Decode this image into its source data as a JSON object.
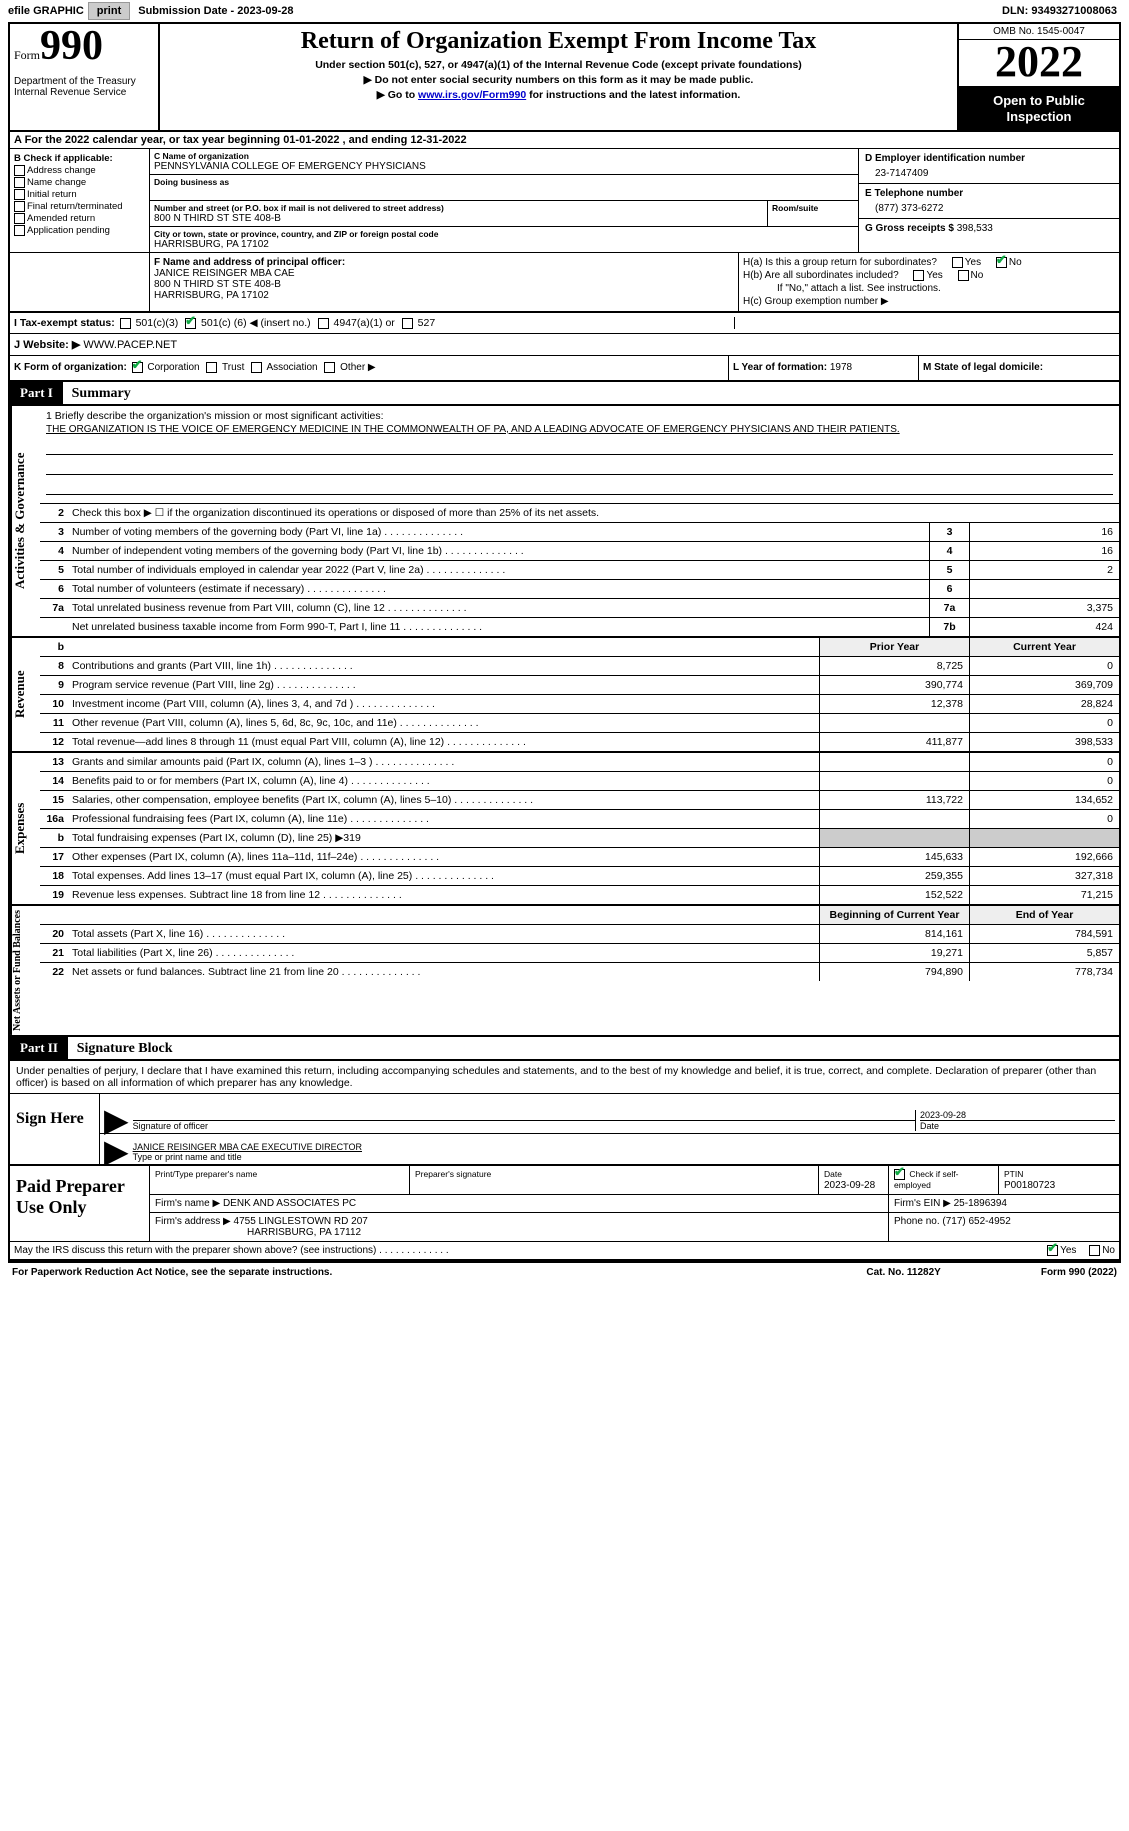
{
  "topbar": {
    "efile_label": "efile GRAPHIC",
    "print_btn": "print",
    "sub_date_label": "Submission Date - 2023-09-28",
    "dln_label": "DLN: 93493271008063"
  },
  "header": {
    "form_prefix": "Form",
    "form_number": "990",
    "title": "Return of Organization Exempt From Income Tax",
    "subtitle1": "Under section 501(c), 527, or 4947(a)(1) of the Internal Revenue Code (except private foundations)",
    "subtitle2": "▶ Do not enter social security numbers on this form as it may be made public.",
    "subtitle3_pre": "▶ Go to ",
    "subtitle3_link": "www.irs.gov/Form990",
    "subtitle3_post": " for instructions and the latest information.",
    "dept1": "Department of the Treasury",
    "dept2": "Internal Revenue Service",
    "omb": "OMB No. 1545-0047",
    "year": "2022",
    "inspection": "Open to Public Inspection"
  },
  "rowA": "A For the 2022 calendar year, or tax year beginning 01-01-2022    , and ending 12-31-2022",
  "boxB": {
    "label": "B Check if applicable:",
    "items": [
      "Address change",
      "Name change",
      "Initial return",
      "Final return/terminated",
      "Amended return",
      "Application pending"
    ]
  },
  "boxC": {
    "name_label": "C Name of organization",
    "name": "PENNSYLVANIA COLLEGE OF EMERGENCY PHYSICIANS",
    "dba_label": "Doing business as",
    "street_label": "Number and street (or P.O. box if mail is not delivered to street address)",
    "street": "800 N THIRD ST STE 408-B",
    "room_label": "Room/suite",
    "city_label": "City or town, state or province, country, and ZIP or foreign postal code",
    "city": "HARRISBURG, PA   17102"
  },
  "boxD": {
    "label": "D Employer identification number",
    "value": "23-7147409"
  },
  "boxE": {
    "label": "E Telephone number",
    "value": "(877) 373-6272"
  },
  "boxG": {
    "label": "G Gross receipts $ ",
    "value": "398,533"
  },
  "boxF": {
    "label": "F  Name and address of principal officer:",
    "name": "JANICE REISINGER MBA CAE",
    "addr1": "800 N THIRD ST STE 408-B",
    "addr2": "HARRISBURG, PA   17102"
  },
  "boxH": {
    "ha": "H(a)  Is this a group return for subordinates?",
    "hb": "H(b)  Are all subordinates included?",
    "hb_note": "If \"No,\" attach a list. See instructions.",
    "hc": "H(c)  Group exemption number ▶"
  },
  "rowI": {
    "label": "I   Tax-exempt status:",
    "opt1": "501(c)(3)",
    "opt2_pre": "501(c) (",
    "opt2_num": "6",
    "opt2_post": ") ◀ (insert no.)",
    "opt3": "4947(a)(1) or",
    "opt4": "527"
  },
  "rowJ": {
    "label": "J   Website: ▶",
    "value": "  WWW.PACEP.NET"
  },
  "rowK": {
    "label": "K Form of organization:",
    "opts": [
      "Corporation",
      "Trust",
      "Association",
      "Other ▶"
    ]
  },
  "rowL": {
    "label": "L Year of formation: ",
    "value": "1978"
  },
  "rowM": {
    "label": "M State of legal domicile:"
  },
  "part1": {
    "header": "Part I",
    "title": "Summary"
  },
  "summary": {
    "tabs": {
      "ag": "Activities & Governance",
      "rev": "Revenue",
      "exp": "Expenses",
      "na": "Net Assets or Fund Balances"
    },
    "mission_label": "1    Briefly describe the organization's mission or most significant activities:",
    "mission": "THE ORGANIZATION IS THE VOICE OF EMERGENCY MEDICINE IN THE COMMONWEALTH OF PA, AND A LEADING ADVOCATE OF EMERGENCY PHYSICIANS AND THEIR PATIENTS.",
    "line2": "Check this box ▶ ☐  if the organization discontinued its operations or disposed of more than 25% of its net assets.",
    "lines_ag": [
      {
        "n": "3",
        "d": "Number of voting members of the governing body (Part VI, line 1a)",
        "bn": "3",
        "v": "16"
      },
      {
        "n": "4",
        "d": "Number of independent voting members of the governing body (Part VI, line 1b)",
        "bn": "4",
        "v": "16"
      },
      {
        "n": "5",
        "d": "Total number of individuals employed in calendar year 2022 (Part V, line 2a)",
        "bn": "5",
        "v": "2"
      },
      {
        "n": "6",
        "d": "Total number of volunteers (estimate if necessary)",
        "bn": "6",
        "v": ""
      },
      {
        "n": "7a",
        "d": "Total unrelated business revenue from Part VIII, column (C), line 12",
        "bn": "7a",
        "v": "3,375"
      },
      {
        "n": "",
        "d": "Net unrelated business taxable income from Form 990-T, Part I, line 11",
        "bn": "7b",
        "v": "424"
      }
    ],
    "hdr_b": "b",
    "hdr_prior": "Prior Year",
    "hdr_current": "Current Year",
    "lines_rev": [
      {
        "n": "8",
        "d": "Contributions and grants (Part VIII, line 1h)",
        "p": "8,725",
        "c": "0"
      },
      {
        "n": "9",
        "d": "Program service revenue (Part VIII, line 2g)",
        "p": "390,774",
        "c": "369,709"
      },
      {
        "n": "10",
        "d": "Investment income (Part VIII, column (A), lines 3, 4, and 7d )",
        "p": "12,378",
        "c": "28,824"
      },
      {
        "n": "11",
        "d": "Other revenue (Part VIII, column (A), lines 5, 6d, 8c, 9c, 10c, and 11e)",
        "p": "",
        "c": "0"
      },
      {
        "n": "12",
        "d": "Total revenue—add lines 8 through 11 (must equal Part VIII, column (A), line 12)",
        "p": "411,877",
        "c": "398,533"
      }
    ],
    "lines_exp": [
      {
        "n": "13",
        "d": "Grants and similar amounts paid (Part IX, column (A), lines 1–3 )",
        "p": "",
        "c": "0"
      },
      {
        "n": "14",
        "d": "Benefits paid to or for members (Part IX, column (A), line 4)",
        "p": "",
        "c": "0"
      },
      {
        "n": "15",
        "d": "Salaries, other compensation, employee benefits (Part IX, column (A), lines 5–10)",
        "p": "113,722",
        "c": "134,652"
      },
      {
        "n": "16a",
        "d": "Professional fundraising fees (Part IX, column (A), line 11e)",
        "p": "",
        "c": "0"
      },
      {
        "n": "b",
        "d": "Total fundraising expenses (Part IX, column (D), line 25) ▶319",
        "p": "grey",
        "c": "grey",
        "nobox": true
      },
      {
        "n": "17",
        "d": "Other expenses (Part IX, column (A), lines 11a–11d, 11f–24e)",
        "p": "145,633",
        "c": "192,666"
      },
      {
        "n": "18",
        "d": "Total expenses. Add lines 13–17 (must equal Part IX, column (A), line 25)",
        "p": "259,355",
        "c": "327,318"
      },
      {
        "n": "19",
        "d": "Revenue less expenses. Subtract line 18 from line 12",
        "p": "152,522",
        "c": "71,215"
      }
    ],
    "hdr_begin": "Beginning of Current Year",
    "hdr_end": "End of Year",
    "lines_na": [
      {
        "n": "20",
        "d": "Total assets (Part X, line 16)",
        "p": "814,161",
        "c": "784,591"
      },
      {
        "n": "21",
        "d": "Total liabilities (Part X, line 26)",
        "p": "19,271",
        "c": "5,857"
      },
      {
        "n": "22",
        "d": "Net assets or fund balances. Subtract line 21 from line 20",
        "p": "794,890",
        "c": "778,734"
      }
    ]
  },
  "part2": {
    "header": "Part II",
    "title": "Signature Block"
  },
  "sig_text": "Under penalties of perjury, I declare that I have examined this return, including accompanying schedules and statements, and to the best of my knowledge and belief, it is true, correct, and complete. Declaration of preparer (other than officer) is based on all information of which preparer has any knowledge.",
  "sign": {
    "left": "Sign Here",
    "sig_of_officer": "Signature of officer",
    "sig_date": "2023-09-28",
    "date_label": "Date",
    "typed_name": "JANICE REISINGER MBA CAE  EXECUTIVE DIRECTOR",
    "typed_label": "Type or print name and title"
  },
  "preparer": {
    "left": "Paid Preparer Use Only",
    "name_label": "Print/Type preparer's name",
    "sig_label": "Preparer's signature",
    "date_label": "Date",
    "date_value": "2023-09-28",
    "check_label": "Check ☑ if self-employed",
    "ptin_label": "PTIN",
    "ptin_value": "P00180723",
    "firm_name_label": "Firm's name      ▶",
    "firm_name": "DENK AND ASSOCIATES PC",
    "firm_ein_label": "Firm's EIN ▶",
    "firm_ein": "25-1896394",
    "firm_addr_label": "Firm's address ▶",
    "firm_addr1": "4755 LINGLESTOWN RD 207",
    "firm_addr2": "HARRISBURG, PA   17112",
    "phone_label": "Phone no. ",
    "phone": "(717) 652-4952"
  },
  "footer": {
    "irs_discuss": "May the IRS discuss this return with the preparer shown above? (see instructions)",
    "paperwork": "For Paperwork Reduction Act Notice, see the separate instructions.",
    "catno": "Cat. No. 11282Y",
    "formref": "Form 990 (2022)"
  },
  "yes": "Yes",
  "no": "No"
}
